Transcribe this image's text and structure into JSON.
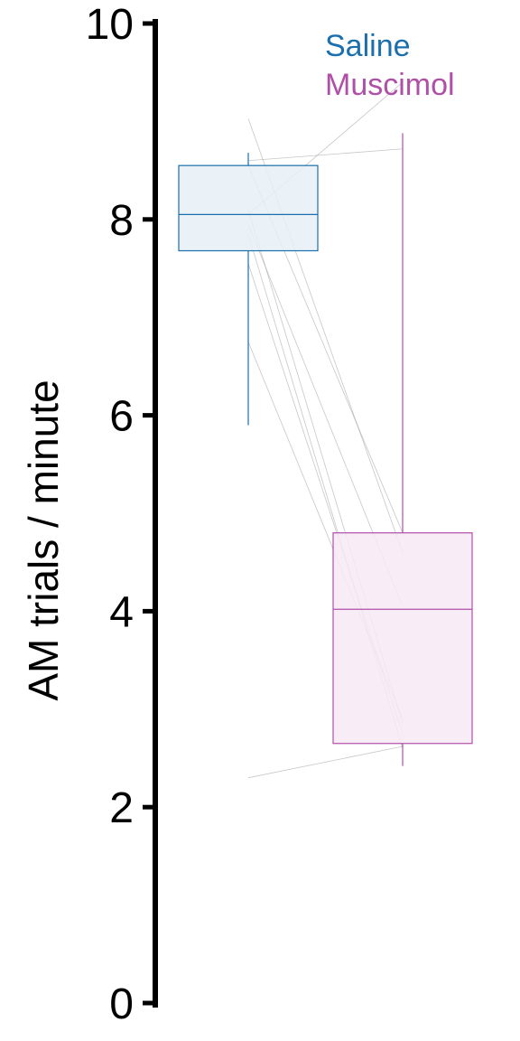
{
  "chart_data": {
    "type": "box",
    "ylabel": "AM trials / minute",
    "ylim": [
      0,
      10
    ],
    "yticks": [
      0,
      2,
      4,
      6,
      8,
      10
    ],
    "legend": {
      "placement": "top-right",
      "entries": [
        "Saline",
        "Muscimol"
      ]
    },
    "series": [
      {
        "name": "Saline",
        "color": "#1a6fad",
        "fill": "#e6f0f7",
        "min": 5.9,
        "q1": 7.68,
        "median": 8.05,
        "q3": 8.55,
        "max": 8.68
      },
      {
        "name": "Muscimol",
        "color": "#b04fa8",
        "fill": "#f7eaf4",
        "min": 2.42,
        "q1": 2.65,
        "median": 4.02,
        "q3": 4.8,
        "max": 8.88
      }
    ],
    "paired_lines": [
      {
        "saline": 9.03,
        "muscimol": 4.6
      },
      {
        "saline": 8.6,
        "muscimol": 8.72
      },
      {
        "saline": 8.55,
        "muscimol": 4.8
      },
      {
        "saline": 8.1,
        "muscimol": 2.85
      },
      {
        "saline": 8.05,
        "muscimol": 9.4
      },
      {
        "saline": 7.95,
        "muscimol": 4.05
      },
      {
        "saline": 7.85,
        "muscimol": 2.6
      },
      {
        "saline": 7.55,
        "muscimol": 2.75
      },
      {
        "saline": 6.75,
        "muscimol": 2.9
      },
      {
        "saline": 2.3,
        "muscimol": 2.62
      }
    ]
  }
}
